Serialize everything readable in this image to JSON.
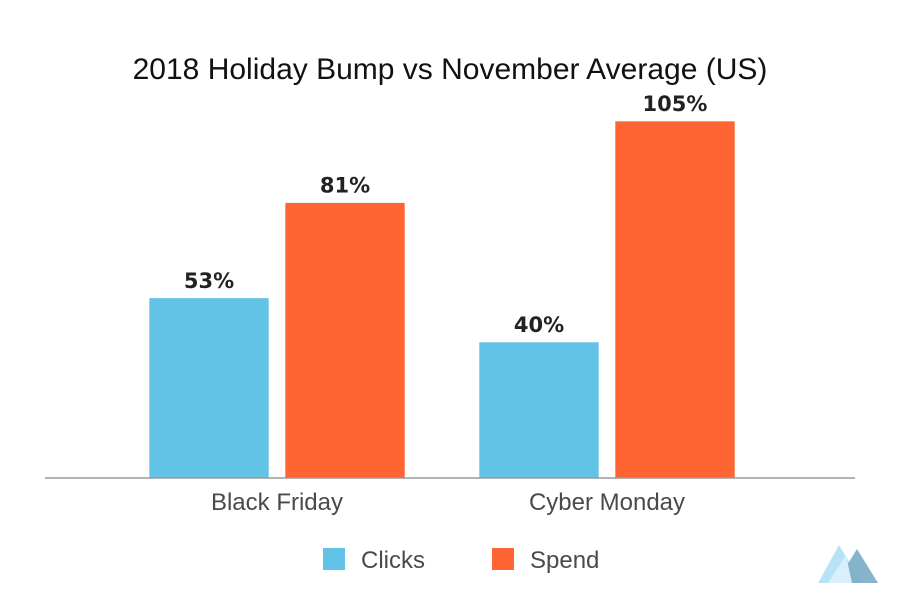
{
  "chart_data": {
    "type": "bar",
    "title": "2018 Holiday Bump vs November Average (US)",
    "categories": [
      "Black Friday",
      "Cyber Monday"
    ],
    "series": [
      {
        "name": "Clicks",
        "values": [
          53,
          40
        ],
        "labels": [
          "53%",
          "40%"
        ],
        "color": "#62c3e6"
      },
      {
        "name": "Spend",
        "values": [
          81,
          105
        ],
        "labels": [
          "81%",
          "105%"
        ],
        "color": "#ff6433"
      }
    ],
    "ylim": [
      0,
      115
    ],
    "xlabel": "",
    "ylabel": "",
    "grid": false,
    "legend_position": "bottom"
  },
  "logo": {
    "name": "mountain-logo",
    "colors": [
      "#b9e3f5",
      "#7fb0c8"
    ]
  }
}
